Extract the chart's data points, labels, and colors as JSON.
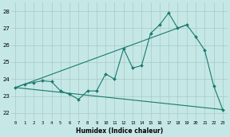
{
  "x": [
    0,
    1,
    2,
    3,
    4,
    5,
    6,
    7,
    8,
    9,
    10,
    11,
    12,
    13,
    14,
    15,
    16,
    17,
    18,
    19,
    20,
    21,
    22,
    23
  ],
  "series1": [
    23.5,
    23.7,
    23.8,
    23.9,
    23.85,
    23.3,
    23.1,
    22.8,
    23.3,
    23.3,
    24.3,
    24.0,
    25.8,
    24.65,
    24.8,
    26.7,
    27.2,
    27.9,
    27.0,
    27.2,
    26.5,
    25.7,
    23.6,
    22.2
  ],
  "line_upper": {
    "x": [
      0,
      19
    ],
    "y": [
      23.5,
      27.2
    ]
  },
  "line_lower": {
    "x": [
      0,
      23
    ],
    "y": [
      23.5,
      22.2
    ]
  },
  "bg_color": "#c5e8e6",
  "line_color": "#1a7a6e",
  "xlabel": "Humidex (Indice chaleur)",
  "yticks": [
    22,
    23,
    24,
    25,
    26,
    27,
    28
  ],
  "xlim": [
    -0.5,
    23.5
  ],
  "ylim": [
    21.6,
    28.5
  ]
}
